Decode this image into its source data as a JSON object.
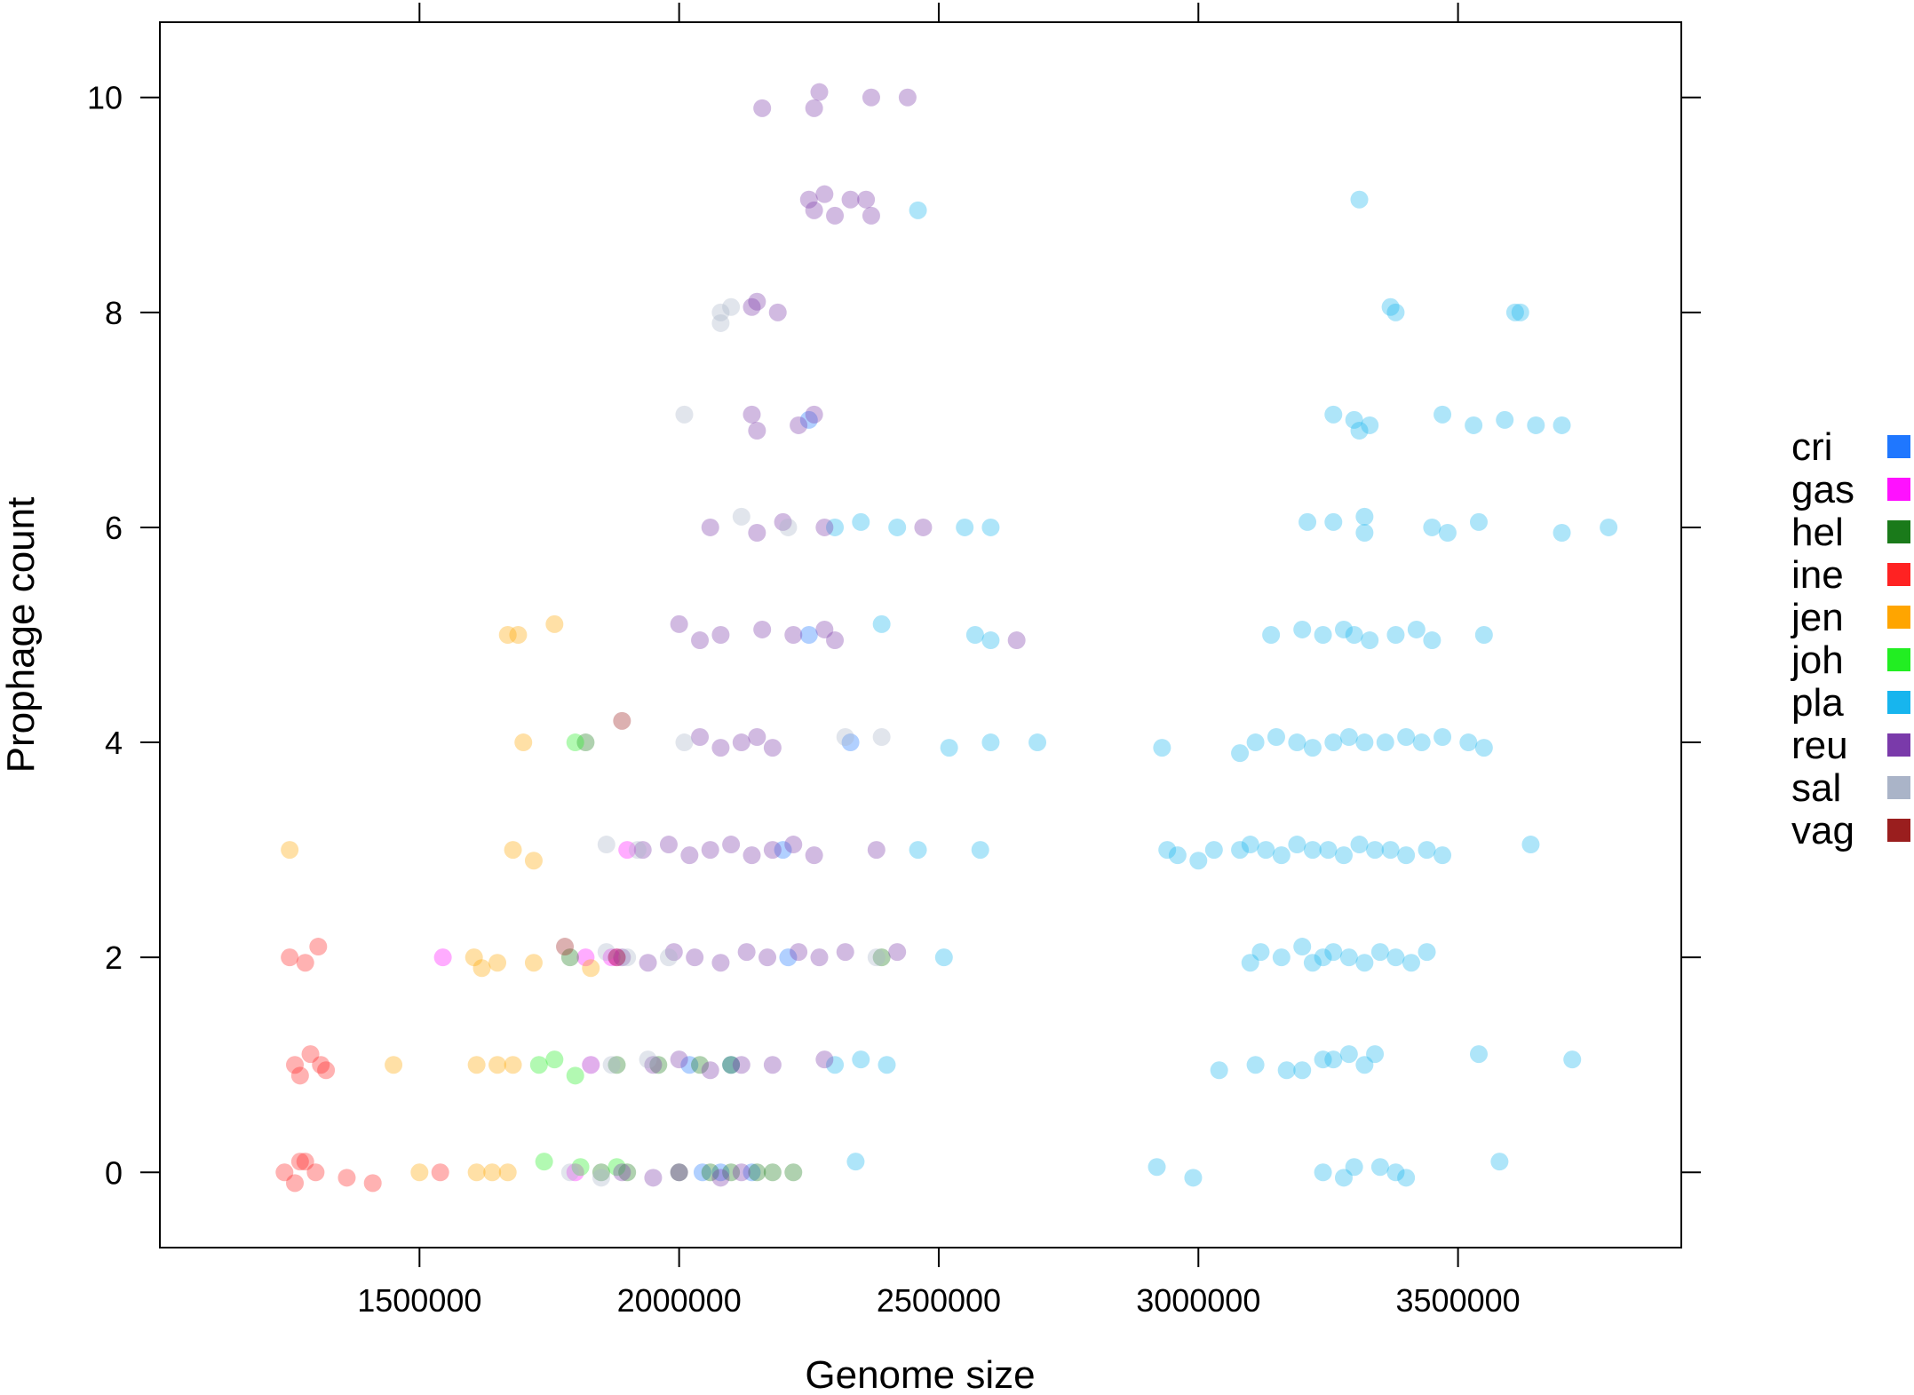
{
  "chart_data": {
    "type": "scatter",
    "xlabel": "Genome size",
    "ylabel": "Prophage count",
    "xlim": [
      1000000,
      3930000
    ],
    "ylim": [
      -0.7,
      10.7
    ],
    "x_ticks": [
      1500000,
      2000000,
      2500000,
      3000000,
      3500000
    ],
    "x_tick_labels": [
      "1500000",
      "2000000",
      "2500000",
      "3000000",
      "3500000"
    ],
    "y_ticks": [
      0,
      2,
      4,
      6,
      8,
      10
    ],
    "y_tick_labels": [
      "0",
      "2",
      "4",
      "6",
      "8",
      "10"
    ],
    "grid": false,
    "legend_position": "right",
    "point_alpha": 0.35,
    "series": [
      {
        "name": "cri",
        "color": "#1f77ff",
        "points": [
          [
            2045000,
            0
          ],
          [
            2080000,
            0
          ],
          [
            2140000,
            0
          ],
          [
            2020000,
            1
          ],
          [
            2100000,
            1
          ],
          [
            2210000,
            2
          ],
          [
            2200000,
            3
          ],
          [
            2250000,
            5
          ],
          [
            2330000,
            4
          ],
          [
            2250000,
            7
          ]
        ]
      },
      {
        "name": "gas",
        "color": "#ff11ff",
        "points": [
          [
            1545000,
            2
          ],
          [
            1820000,
            2
          ],
          [
            1880000,
            2
          ],
          [
            1900000,
            3
          ],
          [
            1800000,
            0
          ],
          [
            1830000,
            1
          ],
          [
            1870000,
            2
          ]
        ]
      },
      {
        "name": "hel",
        "color": "#1a7a1a",
        "points": [
          [
            1820000,
            4
          ],
          [
            1790000,
            2
          ],
          [
            2390000,
            2
          ],
          [
            1850000,
            0
          ],
          [
            1900000,
            0
          ],
          [
            2060000,
            0
          ],
          [
            2100000,
            0
          ],
          [
            2180000,
            0
          ],
          [
            2220000,
            0
          ],
          [
            1960000,
            1
          ],
          [
            2040000,
            1
          ],
          [
            2100000,
            1
          ],
          [
            2000000,
            0
          ],
          [
            2150000,
            0
          ],
          [
            1880000,
            1
          ]
        ]
      },
      {
        "name": "ine",
        "color": "#ff2222",
        "points": [
          [
            1240000,
            0
          ],
          [
            1260000,
            -0.1
          ],
          [
            1270000,
            0.1
          ],
          [
            1280000,
            0.1
          ],
          [
            1300000,
            0
          ],
          [
            1360000,
            -0.05
          ],
          [
            1410000,
            -0.1
          ],
          [
            1540000,
            0
          ],
          [
            1260000,
            1
          ],
          [
            1290000,
            1.1
          ],
          [
            1310000,
            1
          ],
          [
            1320000,
            0.95
          ],
          [
            1250000,
            2
          ],
          [
            1305000,
            2.1
          ],
          [
            1280000,
            1.95
          ],
          [
            1270000,
            0.9
          ]
        ]
      },
      {
        "name": "jen",
        "color": "#ffa500",
        "points": [
          [
            1250000,
            3
          ],
          [
            1680000,
            3
          ],
          [
            1720000,
            2.9
          ],
          [
            1605000,
            2
          ],
          [
            1620000,
            1.9
          ],
          [
            1650000,
            1.95
          ],
          [
            1720000,
            1.95
          ],
          [
            1830000,
            1.9
          ],
          [
            1610000,
            1
          ],
          [
            1650000,
            1
          ],
          [
            1680000,
            1
          ],
          [
            1450000,
            1
          ],
          [
            1700000,
            4
          ],
          [
            1670000,
            5
          ],
          [
            1690000,
            5
          ],
          [
            1760000,
            5.1
          ],
          [
            1500000,
            0
          ],
          [
            1610000,
            0
          ],
          [
            1640000,
            0
          ],
          [
            1670000,
            0
          ]
        ]
      },
      {
        "name": "joh",
        "color": "#22ee22",
        "points": [
          [
            1730000,
            1
          ],
          [
            1760000,
            1.05
          ],
          [
            1800000,
            0.9
          ],
          [
            1740000,
            0.1
          ],
          [
            1800000,
            4
          ],
          [
            1810000,
            0.05
          ],
          [
            1880000,
            0.05
          ]
        ]
      },
      {
        "name": "pla",
        "color": "#17b5ee",
        "points": [
          [
            2340000,
            0.1
          ],
          [
            2920000,
            0.05
          ],
          [
            2990000,
            -0.05
          ],
          [
            3240000,
            0
          ],
          [
            3280000,
            -0.05
          ],
          [
            3300000,
            0.05
          ],
          [
            3350000,
            0.05
          ],
          [
            3380000,
            0
          ],
          [
            3400000,
            -0.05
          ],
          [
            3580000,
            0.1
          ],
          [
            3040000,
            0.95
          ],
          [
            3110000,
            1
          ],
          [
            3170000,
            0.95
          ],
          [
            3200000,
            0.95
          ],
          [
            3240000,
            1.05
          ],
          [
            3260000,
            1.05
          ],
          [
            3290000,
            1.1
          ],
          [
            3320000,
            1
          ],
          [
            3340000,
            1.1
          ],
          [
            3540000,
            1.1
          ],
          [
            3720000,
            1.05
          ],
          [
            2300000,
            1
          ],
          [
            2350000,
            1.05
          ],
          [
            2400000,
            1
          ],
          [
            2510000,
            2
          ],
          [
            3100000,
            1.95
          ],
          [
            3120000,
            2.05
          ],
          [
            3160000,
            2
          ],
          [
            3200000,
            2.1
          ],
          [
            3220000,
            1.95
          ],
          [
            3240000,
            2
          ],
          [
            3260000,
            2.05
          ],
          [
            3290000,
            2
          ],
          [
            3320000,
            1.95
          ],
          [
            3350000,
            2.05
          ],
          [
            3380000,
            2
          ],
          [
            3410000,
            1.95
          ],
          [
            3440000,
            2.05
          ],
          [
            2460000,
            3
          ],
          [
            2580000,
            3
          ],
          [
            2940000,
            3
          ],
          [
            2960000,
            2.95
          ],
          [
            3000000,
            2.9
          ],
          [
            3030000,
            3
          ],
          [
            3080000,
            3
          ],
          [
            3100000,
            3.05
          ],
          [
            3130000,
            3
          ],
          [
            3160000,
            2.95
          ],
          [
            3190000,
            3.05
          ],
          [
            3220000,
            3
          ],
          [
            3250000,
            3
          ],
          [
            3280000,
            2.95
          ],
          [
            3310000,
            3.05
          ],
          [
            3340000,
            3
          ],
          [
            3370000,
            3
          ],
          [
            3400000,
            2.95
          ],
          [
            3440000,
            3
          ],
          [
            3470000,
            2.95
          ],
          [
            3640000,
            3.05
          ],
          [
            2520000,
            3.95
          ],
          [
            2600000,
            4
          ],
          [
            2690000,
            4
          ],
          [
            2930000,
            3.95
          ],
          [
            3080000,
            3.9
          ],
          [
            3110000,
            4
          ],
          [
            3150000,
            4.05
          ],
          [
            3190000,
            4
          ],
          [
            3220000,
            3.95
          ],
          [
            3260000,
            4
          ],
          [
            3290000,
            4.05
          ],
          [
            3320000,
            4
          ],
          [
            3360000,
            4
          ],
          [
            3400000,
            4.05
          ],
          [
            3430000,
            4
          ],
          [
            3470000,
            4.05
          ],
          [
            3520000,
            4
          ],
          [
            3550000,
            3.95
          ],
          [
            2390000,
            5.1
          ],
          [
            2570000,
            5
          ],
          [
            2600000,
            4.95
          ],
          [
            3140000,
            5
          ],
          [
            3200000,
            5.05
          ],
          [
            3240000,
            5
          ],
          [
            3280000,
            5.05
          ],
          [
            3300000,
            5
          ],
          [
            3330000,
            4.95
          ],
          [
            3380000,
            5
          ],
          [
            3420000,
            5.05
          ],
          [
            3450000,
            4.95
          ],
          [
            3550000,
            5
          ],
          [
            2300000,
            6
          ],
          [
            2350000,
            6.05
          ],
          [
            2420000,
            6
          ],
          [
            2550000,
            6
          ],
          [
            2600000,
            6
          ],
          [
            3210000,
            6.05
          ],
          [
            3260000,
            6.05
          ],
          [
            3320000,
            6.1
          ],
          [
            3320000,
            5.95
          ],
          [
            3450000,
            6
          ],
          [
            3480000,
            5.95
          ],
          [
            3540000,
            6.05
          ],
          [
            3700000,
            5.95
          ],
          [
            3790000,
            6
          ],
          [
            3260000,
            7.05
          ],
          [
            3300000,
            7
          ],
          [
            3310000,
            6.9
          ],
          [
            3330000,
            6.95
          ],
          [
            3470000,
            7.05
          ],
          [
            3530000,
            6.95
          ],
          [
            3590000,
            7
          ],
          [
            3650000,
            6.95
          ],
          [
            3700000,
            6.95
          ],
          [
            3370000,
            8.05
          ],
          [
            3380000,
            8
          ],
          [
            3610000,
            8
          ],
          [
            3620000,
            8
          ],
          [
            3310000,
            9.05
          ],
          [
            2460000,
            8.95
          ]
        ]
      },
      {
        "name": "reu",
        "color": "#7a3aaa",
        "points": [
          [
            1890000,
            0
          ],
          [
            1950000,
            -0.05
          ],
          [
            2000000,
            0
          ],
          [
            2080000,
            -0.05
          ],
          [
            2120000,
            0
          ],
          [
            1950000,
            1
          ],
          [
            2000000,
            1.05
          ],
          [
            2060000,
            0.95
          ],
          [
            2120000,
            1
          ],
          [
            2180000,
            1
          ],
          [
            2280000,
            1.05
          ],
          [
            1890000,
            2
          ],
          [
            1940000,
            1.95
          ],
          [
            1990000,
            2.05
          ],
          [
            2030000,
            2
          ],
          [
            2080000,
            1.95
          ],
          [
            2130000,
            2.05
          ],
          [
            2170000,
            2
          ],
          [
            2230000,
            2.05
          ],
          [
            2270000,
            2
          ],
          [
            2320000,
            2.05
          ],
          [
            2420000,
            2.05
          ],
          [
            1930000,
            3
          ],
          [
            1980000,
            3.05
          ],
          [
            2020000,
            2.95
          ],
          [
            2060000,
            3
          ],
          [
            2100000,
            3.05
          ],
          [
            2140000,
            2.95
          ],
          [
            2180000,
            3
          ],
          [
            2220000,
            3.05
          ],
          [
            2260000,
            2.95
          ],
          [
            2380000,
            3
          ],
          [
            2040000,
            4.05
          ],
          [
            2080000,
            3.95
          ],
          [
            2120000,
            4
          ],
          [
            2150000,
            4.05
          ],
          [
            2180000,
            3.95
          ],
          [
            2040000,
            4.95
          ],
          [
            2080000,
            5
          ],
          [
            2160000,
            5.05
          ],
          [
            2220000,
            5
          ],
          [
            2280000,
            5.05
          ],
          [
            2300000,
            4.95
          ],
          [
            2650000,
            4.95
          ],
          [
            2000000,
            5.1
          ],
          [
            2060000,
            6
          ],
          [
            2150000,
            5.95
          ],
          [
            2200000,
            6.05
          ],
          [
            2280000,
            6
          ],
          [
            2470000,
            6
          ],
          [
            2140000,
            7.05
          ],
          [
            2150000,
            6.9
          ],
          [
            2230000,
            6.95
          ],
          [
            2260000,
            7.05
          ],
          [
            2140000,
            8.05
          ],
          [
            2150000,
            8.1
          ],
          [
            2190000,
            8
          ],
          [
            2250000,
            9.05
          ],
          [
            2260000,
            8.95
          ],
          [
            2280000,
            9.1
          ],
          [
            2300000,
            8.9
          ],
          [
            2330000,
            9.05
          ],
          [
            2360000,
            9.05
          ],
          [
            2370000,
            8.9
          ],
          [
            2160000,
            9.9
          ],
          [
            2260000,
            9.9
          ],
          [
            2270000,
            10.05
          ],
          [
            2370000,
            10
          ],
          [
            2440000,
            10
          ]
        ]
      },
      {
        "name": "sal",
        "color": "#aab4c8",
        "points": [
          [
            1790000,
            0
          ],
          [
            1850000,
            -0.05
          ],
          [
            1830000,
            1
          ],
          [
            1870000,
            1
          ],
          [
            1940000,
            1.05
          ],
          [
            1860000,
            2.05
          ],
          [
            1900000,
            2
          ],
          [
            1980000,
            2
          ],
          [
            2380000,
            2
          ],
          [
            1860000,
            3.05
          ],
          [
            2010000,
            4
          ],
          [
            2320000,
            4.05
          ],
          [
            2390000,
            4.05
          ],
          [
            2120000,
            6.1
          ],
          [
            2210000,
            6
          ],
          [
            2010000,
            7.05
          ],
          [
            2080000,
            8
          ],
          [
            2080000,
            7.9
          ],
          [
            2100000,
            8.05
          ],
          [
            1920000,
            3
          ]
        ]
      },
      {
        "name": "vag",
        "color": "#9a1e1e",
        "points": [
          [
            1890000,
            4.2
          ],
          [
            1780000,
            2.1
          ],
          [
            1880000,
            2
          ]
        ]
      }
    ]
  }
}
